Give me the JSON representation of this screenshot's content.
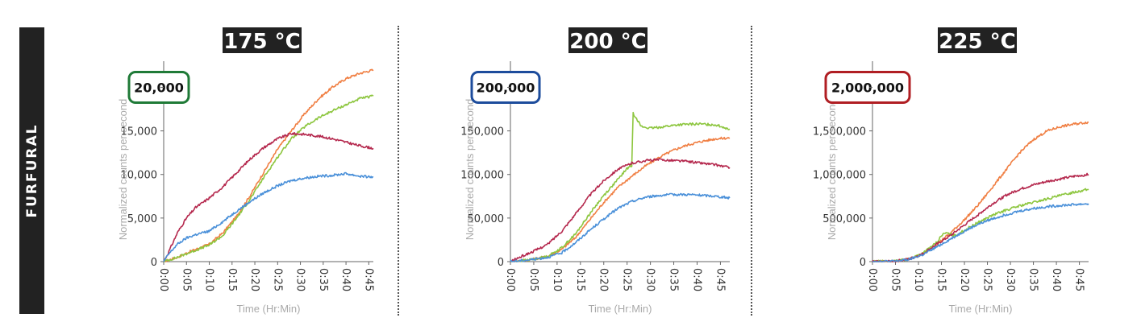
{
  "side_label": "FURFURAL",
  "colors": {
    "orange": "#f07f43",
    "green": "#8dc63f",
    "red": "#b5294e",
    "blue": "#4a90d9",
    "badge_green": "#1f7a37",
    "badge_blue": "#1d4c9c",
    "badge_red": "#b01e23",
    "title_bg": "#222222"
  },
  "chart_data": [
    {
      "type": "line",
      "title": "175 °C",
      "badge": "20,000",
      "badge_color": "badge_green",
      "xlabel": "Time (Hr:Min)",
      "ylabel": "Normalized counts per second",
      "x_ticks": [
        "0:00",
        "0:05",
        "0:10",
        "0:15",
        "0:20",
        "0:25",
        "0:30",
        "0:35",
        "0:40",
        "0:45"
      ],
      "y_ticks": [
        0,
        5000,
        10000,
        15000
      ],
      "y_tick_labels": [
        "0",
        "5,000",
        "10,000",
        "15,000"
      ],
      "xlim": [
        0,
        46
      ],
      "ylim": [
        0,
        23000
      ],
      "series": [
        {
          "color": "orange",
          "x": [
            0,
            3,
            6,
            10,
            13,
            16,
            19,
            22,
            25,
            28,
            31,
            34,
            37,
            40,
            43,
            46
          ],
          "y": [
            0,
            500,
            1200,
            2000,
            3300,
            5200,
            7600,
            10300,
            12900,
            15000,
            17000,
            18700,
            20000,
            21000,
            21600,
            22000
          ]
        },
        {
          "color": "green",
          "x": [
            0,
            3,
            6,
            10,
            13,
            16,
            19,
            22,
            25,
            28,
            31,
            34,
            37,
            40,
            43,
            46
          ],
          "y": [
            0,
            500,
            1100,
            1900,
            3000,
            5000,
            7200,
            9700,
            12000,
            14100,
            15500,
            16500,
            17300,
            18000,
            18700,
            19000
          ]
        },
        {
          "color": "red",
          "x": [
            0,
            1,
            3,
            5,
            7,
            10,
            13,
            16,
            19,
            22,
            25,
            28,
            31,
            34,
            37,
            40,
            43,
            46
          ],
          "y": [
            0,
            1000,
            3300,
            5000,
            6200,
            7300,
            8600,
            10200,
            11800,
            13100,
            14100,
            14700,
            14600,
            14400,
            14100,
            13700,
            13300,
            13000
          ]
        },
        {
          "color": "blue",
          "x": [
            0,
            1,
            3,
            5,
            7,
            10,
            13,
            16,
            19,
            22,
            25,
            28,
            31,
            34,
            37,
            40,
            43,
            46
          ],
          "y": [
            0,
            800,
            2000,
            2700,
            3100,
            3500,
            4600,
            5800,
            6900,
            7900,
            8700,
            9300,
            9600,
            9800,
            9900,
            10100,
            9800,
            9700
          ]
        }
      ]
    },
    {
      "type": "line",
      "title": "200 °C",
      "badge": "200,000",
      "badge_color": "badge_blue",
      "xlabel": "Time (Hr:Min)",
      "ylabel": "Normalized counts per second",
      "x_ticks": [
        "0:00",
        "0:05",
        "0:10",
        "0:15",
        "0:20",
        "0:25",
        "0:30",
        "0:35",
        "0:40",
        "0:45"
      ],
      "y_ticks": [
        0,
        50000,
        100000,
        150000
      ],
      "y_tick_labels": [
        "0",
        "50,000",
        "100,000",
        "150,000"
      ],
      "xlim": [
        0,
        47
      ],
      "ylim": [
        0,
        230000
      ],
      "series": [
        {
          "color": "orange",
          "x": [
            0,
            4,
            8,
            11,
            14,
            17,
            20,
            23,
            26,
            29,
            32,
            35,
            38,
            41,
            44,
            47
          ],
          "y": [
            0,
            2000,
            6000,
            14000,
            28000,
            48000,
            68000,
            85000,
            98000,
            110000,
            120000,
            128000,
            134000,
            138000,
            141000,
            142000
          ]
        },
        {
          "color": "green",
          "x": [
            0,
            4,
            8,
            11,
            14,
            17,
            20,
            23,
            25,
            26,
            26.3,
            27,
            28,
            30,
            33,
            36,
            40,
            44,
            47
          ],
          "y": [
            0,
            2000,
            6000,
            16000,
            32000,
            55000,
            76000,
            94000,
            107000,
            110000,
            170000,
            165000,
            155000,
            153000,
            155000,
            157000,
            158000,
            157000,
            152000
          ]
        },
        {
          "color": "red",
          "x": [
            0,
            2,
            5,
            8,
            11,
            14,
            17,
            20,
            23,
            26,
            29,
            32,
            35,
            38,
            41,
            44,
            47
          ],
          "y": [
            0,
            5000,
            12000,
            20000,
            35000,
            55000,
            76000,
            93000,
            106000,
            113000,
            116000,
            117000,
            116000,
            115000,
            113000,
            111000,
            108000
          ]
        },
        {
          "color": "blue",
          "x": [
            0,
            4,
            8,
            11,
            14,
            17,
            20,
            23,
            26,
            29,
            32,
            35,
            38,
            41,
            44,
            47
          ],
          "y": [
            0,
            2000,
            5000,
            10000,
            22000,
            36000,
            49000,
            61000,
            69000,
            74000,
            76000,
            77000,
            77000,
            76000,
            75000,
            73000
          ]
        }
      ]
    },
    {
      "type": "line",
      "title": "225 °C",
      "badge": "2,000,000",
      "badge_color": "badge_red",
      "xlabel": "Time (Hr:Min)",
      "ylabel": "Normalized counts per second",
      "x_ticks": [
        "0:00",
        "0:05",
        "0:10",
        "0:15",
        "0:20",
        "0:25",
        "0:30",
        "0:35",
        "0:40",
        "0:45"
      ],
      "y_ticks": [
        0,
        500000,
        1000000,
        1500000
      ],
      "y_tick_labels": [
        "0",
        "500,000",
        "1,000,000",
        "1,500,000"
      ],
      "xlim": [
        0,
        47
      ],
      "ylim": [
        0,
        2300000
      ],
      "series": [
        {
          "color": "orange",
          "x": [
            0,
            5,
            8,
            11,
            14,
            17,
            20,
            23,
            26,
            29,
            32,
            35,
            38,
            41,
            44,
            47
          ],
          "y": [
            0,
            5000,
            30000,
            90000,
            200000,
            330000,
            480000,
            650000,
            850000,
            1050000,
            1250000,
            1400000,
            1500000,
            1550000,
            1580000,
            1600000
          ]
        },
        {
          "color": "green",
          "x": [
            0,
            5,
            8,
            11,
            14,
            15,
            16,
            17,
            18,
            20,
            23,
            26,
            29,
            32,
            35,
            38,
            41,
            44,
            47
          ],
          "y": [
            0,
            5000,
            30000,
            100000,
            220000,
            300000,
            330000,
            310000,
            300000,
            360000,
            450000,
            530000,
            590000,
            640000,
            680000,
            720000,
            760000,
            800000,
            830000
          ]
        },
        {
          "color": "red",
          "x": [
            0,
            5,
            8,
            11,
            14,
            17,
            20,
            23,
            26,
            29,
            32,
            35,
            38,
            41,
            44,
            47
          ],
          "y": [
            0,
            5000,
            30000,
            90000,
            200000,
            300000,
            420000,
            540000,
            660000,
            760000,
            830000,
            880000,
            920000,
            950000,
            980000,
            1000000
          ]
        },
        {
          "color": "blue",
          "x": [
            0,
            5,
            8,
            11,
            14,
            17,
            20,
            23,
            26,
            29,
            32,
            35,
            38,
            41,
            44,
            47
          ],
          "y": [
            0,
            5000,
            25000,
            80000,
            170000,
            260000,
            350000,
            430000,
            490000,
            540000,
            580000,
            610000,
            630000,
            645000,
            655000,
            665000
          ]
        }
      ]
    }
  ]
}
